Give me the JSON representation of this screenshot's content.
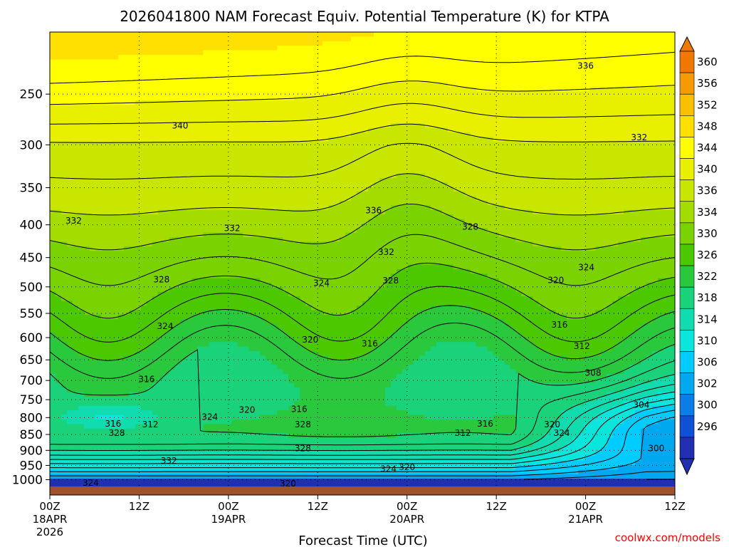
{
  "chart_data": {
    "type": "heatmap",
    "title": "2026041800 NAM Forecast Equiv. Potential Temperature (K) for KTPA",
    "xlabel": "Forecast Time (UTC)",
    "ylabel": "",
    "x_ticks": [
      {
        "label": "00Z",
        "sub": [
          "18APR",
          "2026"
        ],
        "hours": 0
      },
      {
        "label": "12Z",
        "sub": [],
        "hours": 12
      },
      {
        "label": "00Z",
        "sub": [
          "19APR"
        ],
        "hours": 24
      },
      {
        "label": "12Z",
        "sub": [],
        "hours": 36
      },
      {
        "label": "00Z",
        "sub": [
          "20APR"
        ],
        "hours": 48
      },
      {
        "label": "12Z",
        "sub": [],
        "hours": 60
      },
      {
        "label": "00Z",
        "sub": [
          "21APR"
        ],
        "hours": 72
      },
      {
        "label": "12Z",
        "sub": [],
        "hours": 84
      }
    ],
    "xlim_hours": [
      0,
      84
    ],
    "y_ticks": [
      "250",
      "300",
      "350",
      "400",
      "450",
      "500",
      "550",
      "600",
      "650",
      "700",
      "750",
      "800",
      "850",
      "900",
      "950",
      "1000"
    ],
    "y_tick_values": [
      250,
      300,
      350,
      400,
      450,
      500,
      550,
      600,
      650,
      700,
      750,
      800,
      850,
      900,
      950,
      1000
    ],
    "ylim": [
      200,
      1030
    ],
    "y_scale": "log-pressure",
    "grid": "dotted",
    "colorbar": {
      "labels": [
        "360",
        "356",
        "352",
        "348",
        "344",
        "340",
        "336",
        "334",
        "330",
        "326",
        "322",
        "318",
        "314",
        "310",
        "306",
        "302",
        "300",
        "296"
      ],
      "colors": [
        "#f07800",
        "#f59a00",
        "#fabf00",
        "#ffe000",
        "#ffff00",
        "#e8f000",
        "#c8e600",
        "#a4dc00",
        "#7ad200",
        "#4cc800",
        "#2ac83c",
        "#1ad27a",
        "#10dcb0",
        "#0ae6dc",
        "#00ccff",
        "#00a8f0",
        "#0a7ee6",
        "#1050d2",
        "#2030b0"
      ],
      "extend": "both",
      "placement": "right"
    },
    "contour_labels": [
      {
        "text": "336",
        "hours": 72.0,
        "p": 226
      },
      {
        "text": "340",
        "hours": 17.5,
        "p": 280
      },
      {
        "text": "332",
        "hours": 79.2,
        "p": 292
      },
      {
        "text": "336",
        "hours": 43.5,
        "p": 380
      },
      {
        "text": "332",
        "hours": 3.2,
        "p": 394
      },
      {
        "text": "332",
        "hours": 24.5,
        "p": 405
      },
      {
        "text": "328",
        "hours": 56.5,
        "p": 403
      },
      {
        "text": "332",
        "hours": 45.2,
        "p": 441
      },
      {
        "text": "324",
        "hours": 72.1,
        "p": 466
      },
      {
        "text": "328",
        "hours": 15.0,
        "p": 487
      },
      {
        "text": "324",
        "hours": 36.5,
        "p": 493
      },
      {
        "text": "328",
        "hours": 45.8,
        "p": 489
      },
      {
        "text": "320",
        "hours": 68.0,
        "p": 488
      },
      {
        "text": "324",
        "hours": 15.5,
        "p": 576
      },
      {
        "text": "316",
        "hours": 68.5,
        "p": 573
      },
      {
        "text": "320",
        "hours": 35.0,
        "p": 605
      },
      {
        "text": "316",
        "hours": 43.0,
        "p": 613
      },
      {
        "text": "312",
        "hours": 71.5,
        "p": 619
      },
      {
        "text": "308",
        "hours": 73.0,
        "p": 681
      },
      {
        "text": "316",
        "hours": 13.0,
        "p": 697
      },
      {
        "text": "304",
        "hours": 79.5,
        "p": 764
      },
      {
        "text": "320",
        "hours": 26.5,
        "p": 778
      },
      {
        "text": "316",
        "hours": 33.5,
        "p": 776
      },
      {
        "text": "324",
        "hours": 21.5,
        "p": 798
      },
      {
        "text": "316",
        "hours": 8.5,
        "p": 818
      },
      {
        "text": "312",
        "hours": 13.5,
        "p": 820
      },
      {
        "text": "328",
        "hours": 34.0,
        "p": 820
      },
      {
        "text": "316",
        "hours": 58.5,
        "p": 818
      },
      {
        "text": "320",
        "hours": 67.5,
        "p": 820
      },
      {
        "text": "328",
        "hours": 9.0,
        "p": 846
      },
      {
        "text": "312",
        "hours": 55.5,
        "p": 846
      },
      {
        "text": "324",
        "hours": 68.8,
        "p": 846
      },
      {
        "text": "328",
        "hours": 34.0,
        "p": 893
      },
      {
        "text": "300",
        "hours": 81.5,
        "p": 894
      },
      {
        "text": "332",
        "hours": 16.0,
        "p": 934
      },
      {
        "text": "320",
        "hours": 48.0,
        "p": 956
      },
      {
        "text": "324",
        "hours": 45.5,
        "p": 963
      },
      {
        "text": "324",
        "hours": 5.5,
        "p": 1012
      },
      {
        "text": "320",
        "hours": 32.0,
        "p": 1014
      }
    ]
  },
  "credit": "coolwx.com/models",
  "credit_color": "#ff0000",
  "ground_color": "#a0522d",
  "contour_color": "#000000"
}
